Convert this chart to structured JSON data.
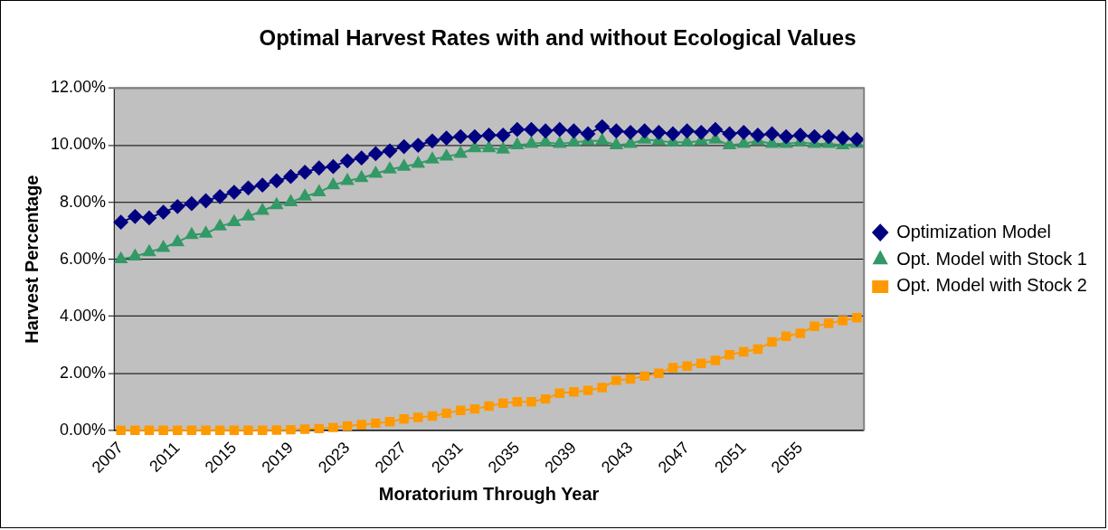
{
  "chart_data": {
    "type": "line",
    "title": "Optimal Harvest Rates with and without Ecological Values",
    "xlabel": "Moratorium Through Year",
    "ylabel": "Harvest Percentage",
    "categories": [
      "2007",
      null,
      null,
      null,
      "2011",
      null,
      null,
      null,
      "2015",
      null,
      null,
      null,
      "2019",
      null,
      null,
      null,
      "2023",
      null,
      null,
      null,
      "2027",
      null,
      null,
      null,
      "2031",
      null,
      null,
      null,
      "2035",
      null,
      null,
      null,
      "2039",
      null,
      null,
      null,
      "2043",
      null,
      null,
      null,
      "2047",
      null,
      null,
      null,
      "2051",
      null,
      null,
      null,
      "2055",
      null,
      null,
      null,
      null
    ],
    "series": [
      {
        "name": "Optimization Model",
        "color": "#000080",
        "marker": "diamond",
        "values": [
          7.3,
          7.5,
          7.45,
          7.65,
          7.85,
          7.95,
          8.05,
          8.2,
          8.35,
          8.5,
          8.6,
          8.75,
          8.9,
          9.05,
          9.2,
          9.25,
          9.45,
          9.55,
          9.7,
          9.8,
          9.95,
          10.0,
          10.15,
          10.25,
          10.3,
          10.3,
          10.35,
          10.35,
          10.55,
          10.55,
          10.5,
          10.55,
          10.5,
          10.4,
          10.65,
          10.5,
          10.45,
          10.5,
          10.45,
          10.4,
          10.5,
          10.45,
          10.55,
          10.4,
          10.45,
          10.35,
          10.4,
          10.3,
          10.35,
          10.3,
          10.3,
          10.25,
          10.2
        ]
      },
      {
        "name": "Opt. Model with Stock 1",
        "color": "#339966",
        "marker": "triangle",
        "values": [
          6.0,
          6.1,
          6.25,
          6.4,
          6.6,
          6.85,
          6.9,
          7.15,
          7.3,
          7.5,
          7.7,
          7.9,
          8.0,
          8.2,
          8.35,
          8.6,
          8.75,
          8.85,
          9.0,
          9.15,
          9.25,
          9.35,
          9.5,
          9.6,
          9.7,
          9.9,
          9.9,
          9.85,
          10.0,
          10.05,
          10.1,
          10.05,
          10.1,
          10.15,
          10.15,
          10.0,
          10.05,
          10.2,
          10.15,
          10.1,
          10.1,
          10.15,
          10.2,
          10.0,
          10.05,
          10.15,
          10.05,
          10.05,
          10.1,
          10.05,
          10.05,
          10.0,
          10.05
        ]
      },
      {
        "name": "Opt. Model with Stock 2",
        "color": "#ff9900",
        "marker": "square",
        "values": [
          0,
          0,
          0,
          0,
          0,
          0,
          0,
          0,
          0,
          0,
          0,
          0.01,
          0.02,
          0.04,
          0.06,
          0.1,
          0.15,
          0.2,
          0.25,
          0.3,
          0.4,
          0.45,
          0.5,
          0.6,
          0.7,
          0.75,
          0.85,
          0.95,
          1.0,
          1.0,
          1.1,
          1.3,
          1.35,
          1.4,
          1.5,
          1.75,
          1.8,
          1.9,
          2.0,
          2.2,
          2.25,
          2.35,
          2.45,
          2.65,
          2.75,
          2.85,
          3.1,
          3.3,
          3.4,
          3.65,
          3.75,
          3.85,
          3.95
        ]
      }
    ],
    "ylim": [
      0,
      12
    ],
    "yticks": [
      {
        "value": 0,
        "label": "0.00%"
      },
      {
        "value": 2,
        "label": "2.00%"
      },
      {
        "value": 4,
        "label": "4.00%"
      },
      {
        "value": 6,
        "label": "6.00%"
      },
      {
        "value": 8,
        "label": "8.00%"
      },
      {
        "value": 10,
        "label": "10.00%"
      },
      {
        "value": 12,
        "label": "12.00%"
      }
    ],
    "grid": "y",
    "legend": "right",
    "line_style": "solid"
  }
}
